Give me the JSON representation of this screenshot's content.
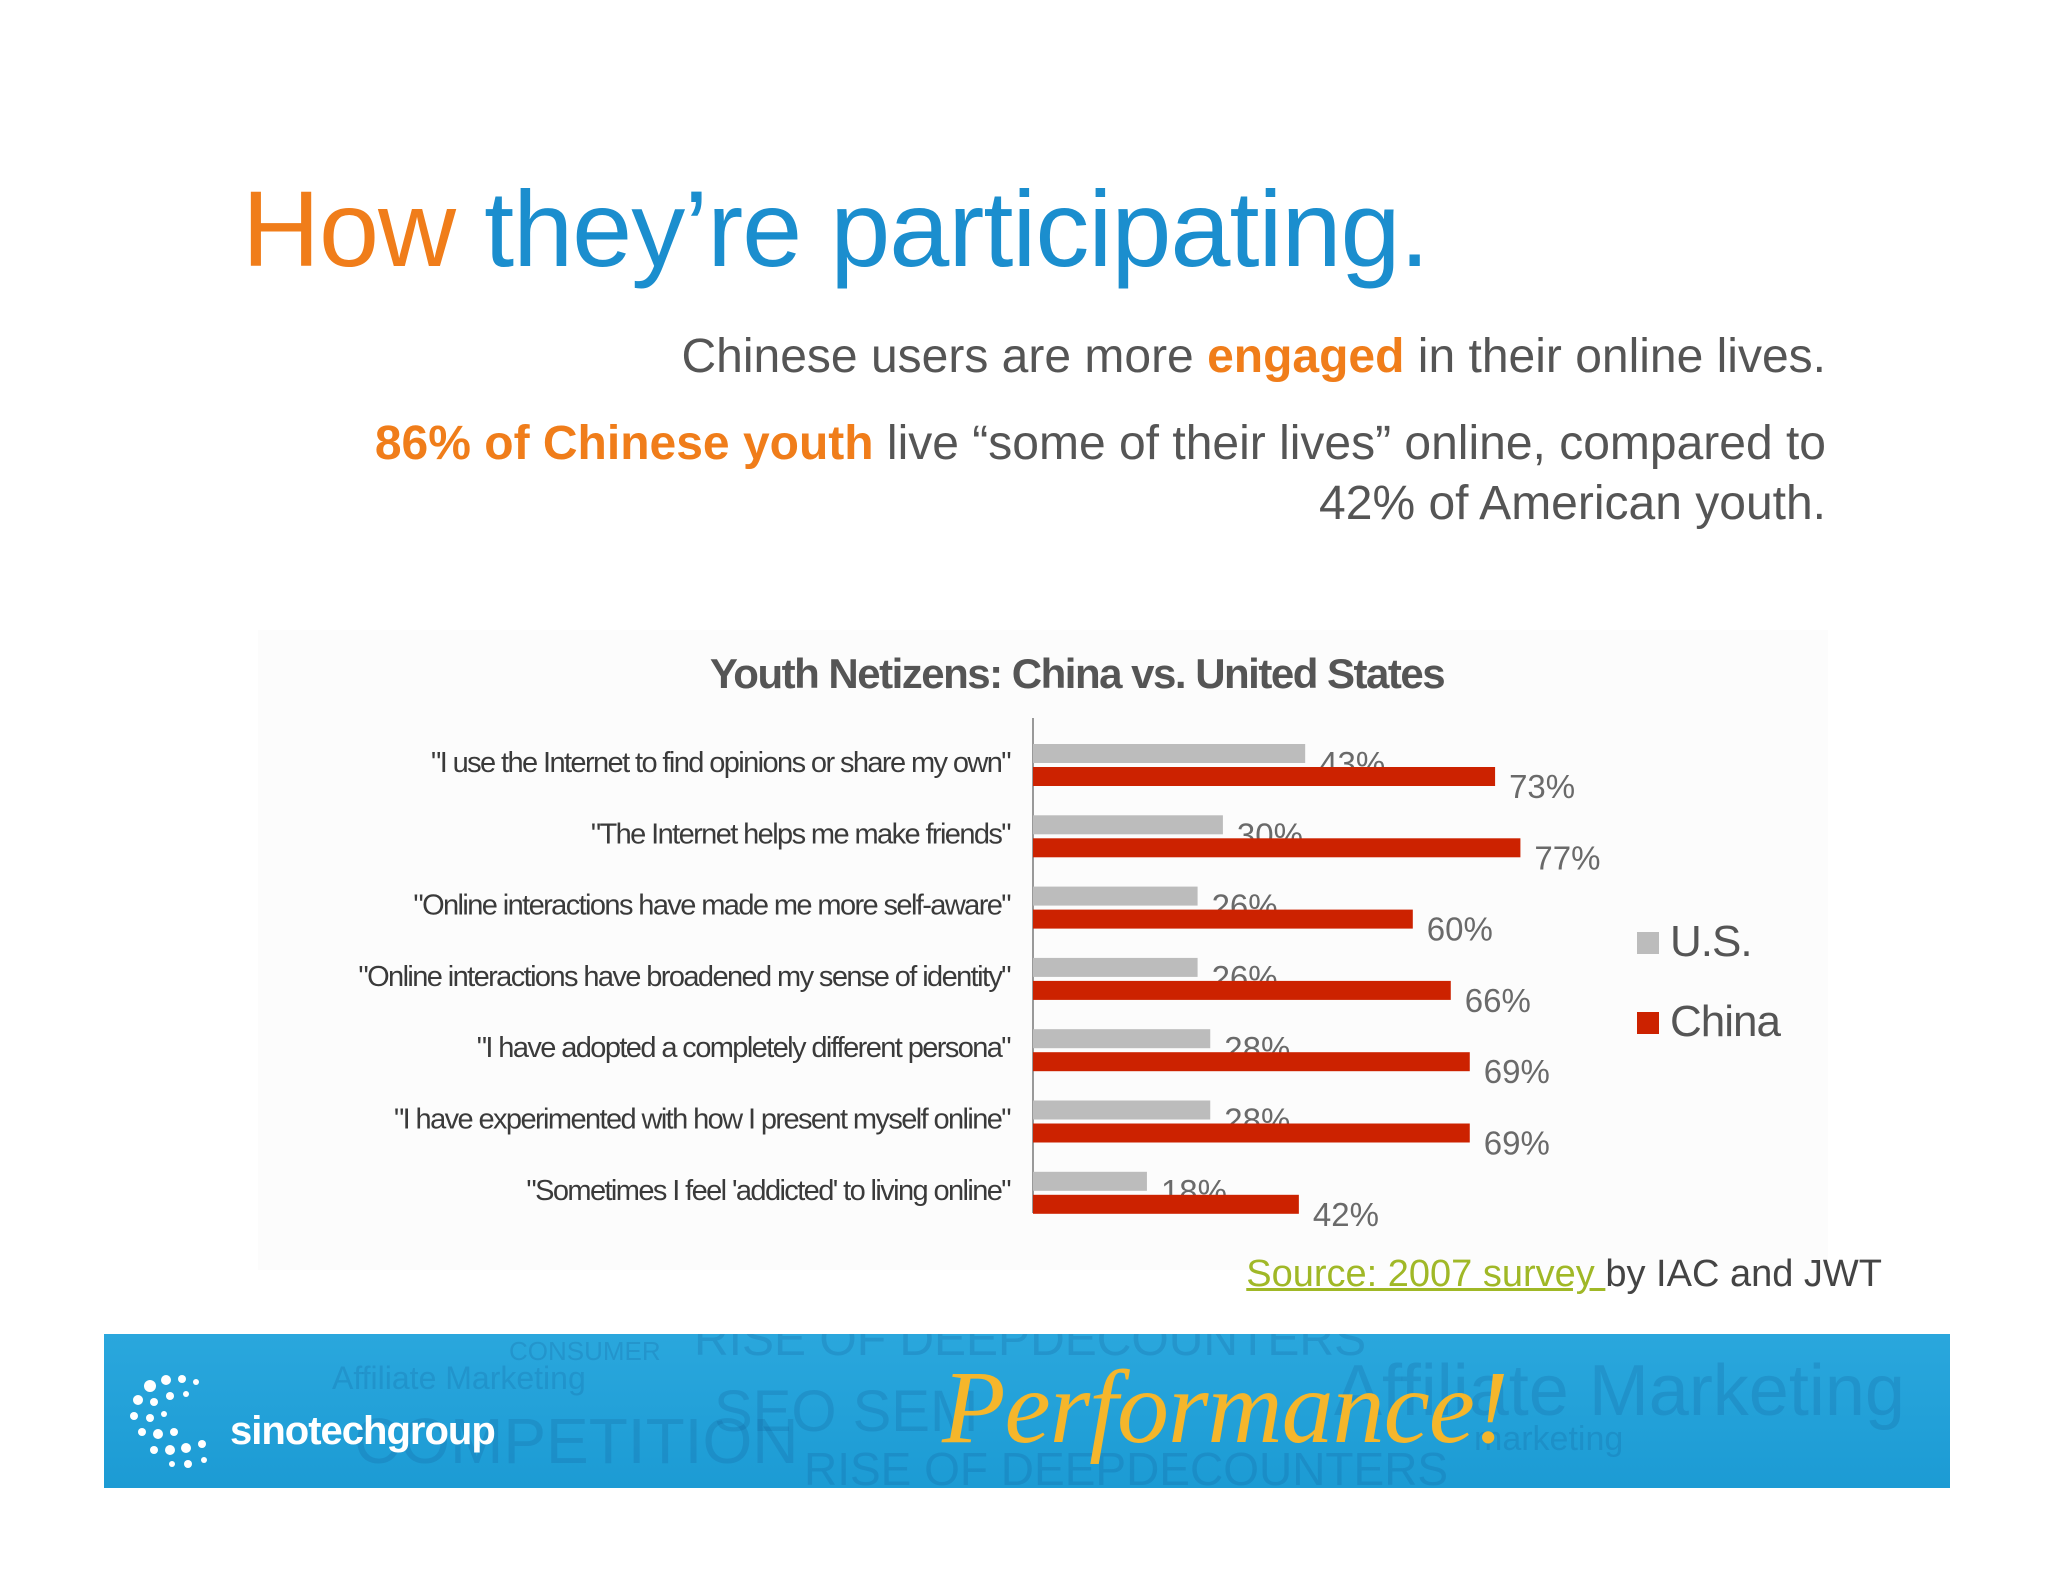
{
  "slide": {
    "title_word1": "How",
    "title_word2": "they’re participating.",
    "subtitle1_pre": "Chinese users are more ",
    "subtitle1_hl": "engaged",
    "subtitle1_post": " in their online lives.",
    "subtitle2_hl": "86% of Chinese youth",
    "subtitle2_post_line1": " live “some of their lives” online, compared to",
    "subtitle2_line2": "42% of American youth."
  },
  "chart_data": {
    "type": "bar",
    "orientation": "horizontal",
    "title": "Youth Netizens: China vs. United States",
    "categories": [
      "\"I  use the Internet to find opinions or share my own\"",
      "\"The Internet helps me make friends\"",
      "\"Online interactions have made me more self-aware\"",
      "\"Online interactions have broadened my sense of identity\"",
      "\"I have adopted a completely different persona\"",
      "\"I have experimented with how I present myself online\"",
      "\"Sometimes I feel 'addicted' to living online\""
    ],
    "series": [
      {
        "name": "U.S.",
        "color": "#bcbcbc",
        "values": [
          43,
          30,
          26,
          26,
          28,
          28,
          18
        ]
      },
      {
        "name": "China",
        "color": "#cc2200",
        "values": [
          73,
          77,
          60,
          66,
          69,
          69,
          42
        ]
      }
    ],
    "value_suffix": "%",
    "xlim": [
      0,
      100
    ],
    "grid": false,
    "legend_position": "right"
  },
  "source": {
    "link_text": "Source: 2007 survey ",
    "rest_text": "by IAC and JWT"
  },
  "footer": {
    "logo_text": "sinotechgroup",
    "tagline": "Performance!",
    "background_words": [
      "CONSUMER",
      "RISE OF DEEPDECOUNTERS",
      "Affiliate Marketing",
      "SEO SEM",
      "COMPETITION",
      "Affiliate Marketing",
      "marketing",
      "RISE OF DEEPDECOUNTERS"
    ],
    "colors": {
      "band": "#1c9bd4",
      "tagline": "#f5b62b",
      "logo": "#ffffff"
    }
  }
}
